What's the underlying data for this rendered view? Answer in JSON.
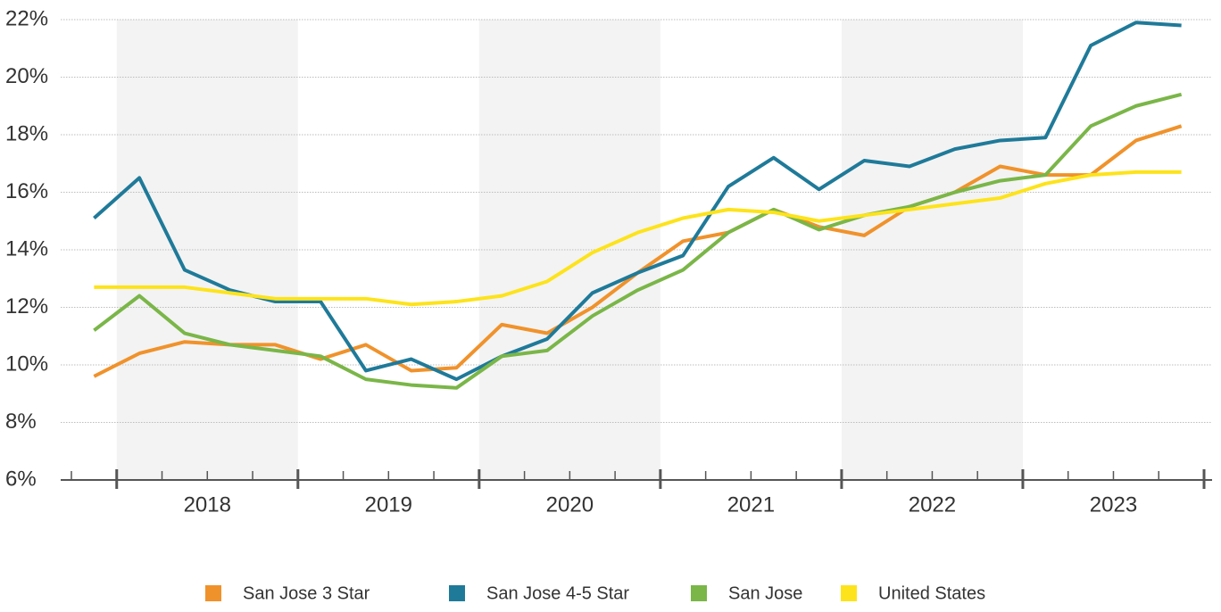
{
  "chart_data": {
    "type": "line",
    "x": [
      2017.875,
      2018.125,
      2018.375,
      2018.625,
      2018.875,
      2019.125,
      2019.375,
      2019.625,
      2019.875,
      2020.125,
      2020.375,
      2020.625,
      2020.875,
      2021.125,
      2021.375,
      2021.625,
      2021.875,
      2022.125,
      2022.375,
      2022.625,
      2022.875,
      2023.125,
      2023.375,
      2023.625,
      2023.875
    ],
    "xlim": [
      2017.75,
      2024
    ],
    "xticks": [
      {
        "value": 2018.5,
        "label": "2018"
      },
      {
        "value": 2019.5,
        "label": "2019"
      },
      {
        "value": 2020.5,
        "label": "2020"
      },
      {
        "value": 2021.5,
        "label": "2021"
      },
      {
        "value": 2022.5,
        "label": "2022"
      },
      {
        "value": 2023.5,
        "label": "2023"
      }
    ],
    "ylim": [
      6,
      22
    ],
    "yticks": [
      {
        "value": 6,
        "label": "6%"
      },
      {
        "value": 8,
        "label": "8%"
      },
      {
        "value": 10,
        "label": "10%"
      },
      {
        "value": 12,
        "label": "12%"
      },
      {
        "value": 14,
        "label": "14%"
      },
      {
        "value": 16,
        "label": "16%"
      },
      {
        "value": 18,
        "label": "18%"
      },
      {
        "value": 20,
        "label": "20%"
      },
      {
        "value": 22,
        "label": "22%"
      }
    ],
    "grid": true,
    "legend": "bottom",
    "series": [
      {
        "name": "San Jose 3 Star",
        "color": "#f0922b",
        "values": [
          9.6,
          10.4,
          10.8,
          10.7,
          10.7,
          10.2,
          10.7,
          9.8,
          9.9,
          11.4,
          11.1,
          12.0,
          13.2,
          14.3,
          14.6,
          15.4,
          14.8,
          14.5,
          15.5,
          16.0,
          16.9,
          16.6,
          16.6,
          17.8,
          18.3
        ]
      },
      {
        "name": "San Jose 4-5 Star",
        "color": "#1f7a99",
        "values": [
          15.1,
          16.5,
          13.3,
          12.6,
          12.2,
          12.2,
          9.8,
          10.2,
          9.5,
          10.3,
          10.9,
          12.5,
          13.2,
          13.8,
          16.2,
          17.2,
          16.1,
          17.1,
          16.9,
          17.5,
          17.8,
          17.9,
          21.1,
          21.9,
          21.8
        ]
      },
      {
        "name": "San Jose",
        "color": "#7ab648",
        "values": [
          11.2,
          12.4,
          11.1,
          10.7,
          10.5,
          10.3,
          9.5,
          9.3,
          9.2,
          10.3,
          10.5,
          11.7,
          12.6,
          13.3,
          14.6,
          15.4,
          14.7,
          15.2,
          15.5,
          16.0,
          16.4,
          16.6,
          18.3,
          19.0,
          19.4
        ]
      },
      {
        "name": "United States",
        "color": "#fde31b",
        "values": [
          12.7,
          12.7,
          12.7,
          12.5,
          12.3,
          12.3,
          12.3,
          12.1,
          12.2,
          12.4,
          12.9,
          13.9,
          14.6,
          15.1,
          15.4,
          15.3,
          15.0,
          15.2,
          15.4,
          15.6,
          15.8,
          16.3,
          16.6,
          16.7,
          16.7
        ]
      }
    ]
  }
}
